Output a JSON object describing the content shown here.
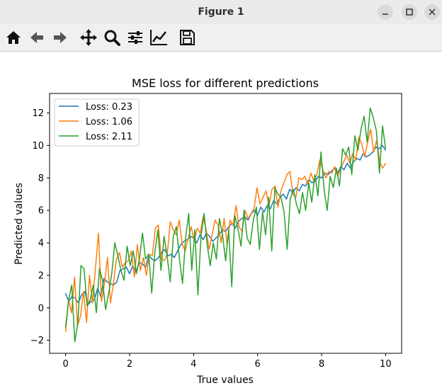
{
  "window": {
    "title": "Figure 1"
  },
  "toolbar": {
    "icons": [
      "home-icon",
      "back-arrow-icon",
      "forward-arrow-icon",
      "pan-icon",
      "zoom-icon",
      "subplots-icon",
      "edit-axes-icon",
      "save-icon"
    ]
  },
  "chart_data": {
    "type": "line",
    "title": "MSE loss for different predictions",
    "xlabel": "True values",
    "ylabel": "Predicted values",
    "xlim": [
      -0.5,
      10.5
    ],
    "ylim": [
      -2.8,
      13.2
    ],
    "xticks": [
      0,
      2,
      4,
      6,
      8,
      10
    ],
    "yticks": [
      -2,
      0,
      2,
      4,
      6,
      8,
      10,
      12
    ],
    "grid": false,
    "legend": "top-left",
    "x_range": [
      0,
      10
    ],
    "series": [
      {
        "name": "Loss: 0.23",
        "color": "#1f77b4",
        "values": [
          0.9,
          0.4,
          0.7,
          0.6,
          0.3,
          0.8,
          1.0,
          0.2,
          0.4,
          0.5,
          1.2,
          0.7,
          1.8,
          1.6,
          1.5,
          1.4,
          1.6,
          2.3,
          2.4,
          2.5,
          2.1,
          2.6,
          2.2,
          2.8,
          2.7,
          2.5,
          3.2,
          3.0,
          2.9,
          3.1,
          3.4,
          3.6,
          3.2,
          3.3,
          3.1,
          3.5,
          3.9,
          4.1,
          4.2,
          4.4,
          4.3,
          4.0,
          4.5,
          4.2,
          4.6,
          4.4,
          4.1,
          4.3,
          4.5,
          4.8,
          4.7,
          5.0,
          5.2,
          4.9,
          5.3,
          5.5,
          5.6,
          5.4,
          5.8,
          6.0,
          5.7,
          6.2,
          5.9,
          6.3,
          6.1,
          6.6,
          6.4,
          6.8,
          7.0,
          6.7,
          7.3,
          7.1,
          7.4,
          7.2,
          7.6,
          7.5,
          7.9,
          7.7,
          7.8,
          8.1,
          8.0,
          8.3,
          8.2,
          8.4,
          8.6,
          8.3,
          8.7,
          8.5,
          8.9,
          8.6,
          9.0,
          9.2,
          9.1,
          9.5,
          9.3,
          9.4,
          9.6,
          9.9,
          9.8,
          10.0,
          9.7
        ]
      },
      {
        "name": "Loss: 1.06",
        "color": "#ff7f0e",
        "values": [
          -1.5,
          0.5,
          -0.3,
          1.9,
          -1.1,
          -0.5,
          1.0,
          -0.9,
          2.0,
          0.3,
          2.5,
          4.6,
          0.4,
          1.5,
          3.1,
          0.3,
          1.5,
          3.0,
          3.4,
          2.5,
          2.8,
          2.9,
          3.5,
          1.9,
          3.9,
          2.3,
          3.1,
          2.0,
          3.3,
          3.2,
          4.9,
          5.1,
          3.0,
          2.9,
          3.3,
          5.3,
          4.8,
          4.5,
          5.4,
          3.9,
          3.5,
          4.3,
          5.0,
          4.1,
          4.9,
          4.6,
          5.6,
          4.8,
          3.6,
          4.5,
          5.4,
          5.1,
          4.0,
          5.5,
          3.9,
          5.4,
          5.1,
          6.3,
          5.0,
          4.7,
          6.0,
          5.5,
          5.8,
          6.1,
          7.4,
          6.4,
          6.8,
          7.2,
          6.3,
          7.3,
          7.5,
          6.2,
          7.2,
          7.7,
          8.2,
          8.4,
          7.0,
          6.8,
          8.0,
          7.9,
          8.1,
          7.6,
          8.3,
          7.8,
          8.2,
          9.1,
          8.5,
          8.0,
          8.4,
          8.3,
          8.7,
          8.1,
          8.6,
          9.0,
          9.4,
          8.9,
          9.5,
          9.1,
          10.5,
          10.1,
          9.3,
          10.2,
          11.0,
          9.6,
          10.3,
          9.0,
          8.6,
          8.9
        ]
      },
      {
        "name": "Loss: 2.11",
        "color": "#2ca02c",
        "values": [
          -1.2,
          0.5,
          1.4,
          -2.1,
          -0.9,
          2.6,
          2.4,
          0.1,
          0.5,
          1.4,
          -0.3,
          2.4,
          1.7,
          -0.1,
          0.9,
          2.1,
          4.0,
          3.2,
          2.3,
          1.7,
          3.8,
          2.6,
          3.5,
          2.1,
          3.0,
          4.6,
          3.0,
          3.3,
          0.9,
          3.4,
          4.8,
          2.3,
          4.4,
          3.2,
          1.6,
          4.4,
          5.0,
          3.0,
          1.5,
          4.3,
          5.8,
          2.3,
          4.8,
          0.8,
          4.4,
          5.8,
          3.9,
          2.6,
          4.0,
          3.0,
          5.5,
          4.5,
          2.9,
          4.8,
          1.3,
          5.7,
          4.9,
          3.8,
          6.0,
          4.3,
          3.9,
          5.4,
          6.2,
          3.6,
          5.9,
          4.5,
          6.8,
          3.5,
          7.4,
          7.0,
          6.8,
          5.9,
          3.6,
          6.7,
          7.3,
          6.4,
          5.8,
          7.1,
          6.0,
          7.7,
          6.5,
          8.2,
          6.9,
          9.6,
          7.3,
          6.0,
          8.1,
          7.4,
          8.6,
          7.5,
          9.8,
          9.4,
          9.9,
          8.2,
          10.6,
          9.7,
          11.0,
          11.8,
          10.2,
          12.3,
          11.7,
          10.9,
          8.3,
          11.2,
          9.8
        ]
      }
    ]
  }
}
